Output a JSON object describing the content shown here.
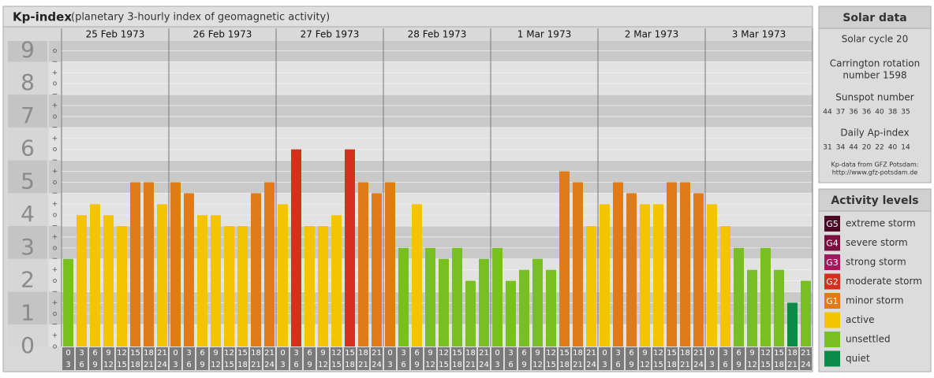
{
  "chart_data": {
    "type": "bar",
    "title": "Kp-index",
    "subtitle": "(planetary 3-hourly index of geomagnetic activity)",
    "ylim": [
      0,
      9.3
    ],
    "yticks": [
      0,
      1,
      2,
      3,
      4,
      5,
      6,
      7,
      8,
      9
    ],
    "minor_yticks": [
      {
        "value": 0,
        "label": "o"
      },
      {
        "value": 0.333,
        "label": "+"
      },
      {
        "value": 0.667,
        "label": "−"
      },
      {
        "value": 1,
        "label": "o"
      },
      {
        "value": 1.333,
        "label": "+"
      },
      {
        "value": 1.667,
        "label": "−"
      },
      {
        "value": 2,
        "label": "o"
      },
      {
        "value": 2.333,
        "label": "+"
      },
      {
        "value": 2.667,
        "label": "−"
      },
      {
        "value": 3,
        "label": "o"
      },
      {
        "value": 3.333,
        "label": "+"
      },
      {
        "value": 3.667,
        "label": "−"
      },
      {
        "value": 4,
        "label": "o"
      },
      {
        "value": 4.333,
        "label": "+"
      },
      {
        "value": 4.667,
        "label": "−"
      },
      {
        "value": 5,
        "label": "o"
      },
      {
        "value": 5.333,
        "label": "+"
      },
      {
        "value": 5.667,
        "label": "−"
      },
      {
        "value": 6,
        "label": "o"
      },
      {
        "value": 6.333,
        "label": "+"
      },
      {
        "value": 6.667,
        "label": "−"
      },
      {
        "value": 7,
        "label": "o"
      },
      {
        "value": 7.333,
        "label": "+"
      },
      {
        "value": 7.667,
        "label": "−"
      },
      {
        "value": 8,
        "label": "o"
      },
      {
        "value": 8.333,
        "label": "+"
      },
      {
        "value": 8.667,
        "label": "−"
      },
      {
        "value": 9,
        "label": "o"
      }
    ],
    "slots": [
      [
        0,
        3
      ],
      [
        3,
        6
      ],
      [
        6,
        9
      ],
      [
        9,
        12
      ],
      [
        12,
        15
      ],
      [
        15,
        18
      ],
      [
        18,
        21
      ],
      [
        21,
        24
      ]
    ],
    "days": [
      {
        "label": "25 Feb 1973",
        "values": [
          2.667,
          4,
          4.333,
          4,
          3.667,
          5,
          5,
          4.333
        ],
        "colors": [
          "#78bf20",
          "#f5c400",
          "#f5c400",
          "#f5c400",
          "#f5c400",
          "#e07b1a",
          "#e07b1a",
          "#f5c400"
        ]
      },
      {
        "label": "26 Feb 1973",
        "values": [
          5,
          4.667,
          4,
          4,
          3.667,
          3.667,
          4.667,
          5
        ],
        "colors": [
          "#e07b1a",
          "#e07b1a",
          "#f5c400",
          "#f5c400",
          "#f5c400",
          "#f5c400",
          "#e07b1a",
          "#e07b1a"
        ]
      },
      {
        "label": "27 Feb 1973",
        "values": [
          4.333,
          6,
          3.667,
          3.667,
          4,
          6,
          5,
          4.667
        ],
        "colors": [
          "#f5c400",
          "#d4301c",
          "#f5c400",
          "#f5c400",
          "#f5c400",
          "#d4301c",
          "#e07b1a",
          "#e07b1a"
        ]
      },
      {
        "label": "28 Feb 1973",
        "values": [
          5,
          3,
          4.333,
          3,
          2.667,
          3,
          2,
          2.667
        ],
        "colors": [
          "#e07b1a",
          "#78bf20",
          "#f5c400",
          "#78bf20",
          "#78bf20",
          "#78bf20",
          "#78bf20",
          "#78bf20"
        ]
      },
      {
        "label": "1 Mar 1973",
        "values": [
          3,
          2,
          2.333,
          2.667,
          2.333,
          5.333,
          5,
          3.667
        ],
        "colors": [
          "#78bf20",
          "#78bf20",
          "#78bf20",
          "#78bf20",
          "#78bf20",
          "#e07b1a",
          "#e07b1a",
          "#f5c400"
        ]
      },
      {
        "label": "2 Mar 1973",
        "values": [
          4.333,
          5,
          4.667,
          4.333,
          4.333,
          5,
          5,
          4.667
        ],
        "colors": [
          "#f5c400",
          "#e07b1a",
          "#e07b1a",
          "#f5c400",
          "#f5c400",
          "#e07b1a",
          "#e07b1a",
          "#e07b1a"
        ]
      },
      {
        "label": "3 Mar 1973",
        "values": [
          4.333,
          3.667,
          3,
          2.333,
          3,
          2.333,
          1.333,
          2
        ],
        "colors": [
          "#f5c400",
          "#f5c400",
          "#78bf20",
          "#78bf20",
          "#78bf20",
          "#78bf20",
          "#0c8a4a",
          "#78bf20"
        ]
      }
    ]
  },
  "solar": {
    "title": "Solar data",
    "cycle": "Solar cycle 20",
    "rotation": [
      "Carrington rotation",
      "number 1598"
    ],
    "sunspot_title": "Sunspot number",
    "sunspots": [
      44,
      37,
      36,
      36,
      40,
      38,
      35
    ],
    "ap_title": "Daily Ap-index",
    "ap": [
      31,
      34,
      44,
      20,
      22,
      40,
      14
    ],
    "source": [
      "Kp-data from GFZ Potsdam:",
      "http://www.gfz-potsdam.de"
    ]
  },
  "legend": {
    "title": "Activity levels",
    "items": [
      {
        "badge": "G5",
        "label": "extreme storm",
        "color": "#4a0a26"
      },
      {
        "badge": "G4",
        "label": "severe storm",
        "color": "#7a1040"
      },
      {
        "badge": "G3",
        "label": "strong storm",
        "color": "#a8155e"
      },
      {
        "badge": "G2",
        "label": "moderate storm",
        "color": "#d4301c"
      },
      {
        "badge": "G1",
        "label": "minor storm",
        "color": "#e07b1a"
      },
      {
        "badge": "",
        "label": "active",
        "color": "#f5c400"
      },
      {
        "badge": "",
        "label": "unsettled",
        "color": "#78bf20"
      },
      {
        "badge": "",
        "label": "quiet",
        "color": "#0c8a4a"
      }
    ]
  }
}
